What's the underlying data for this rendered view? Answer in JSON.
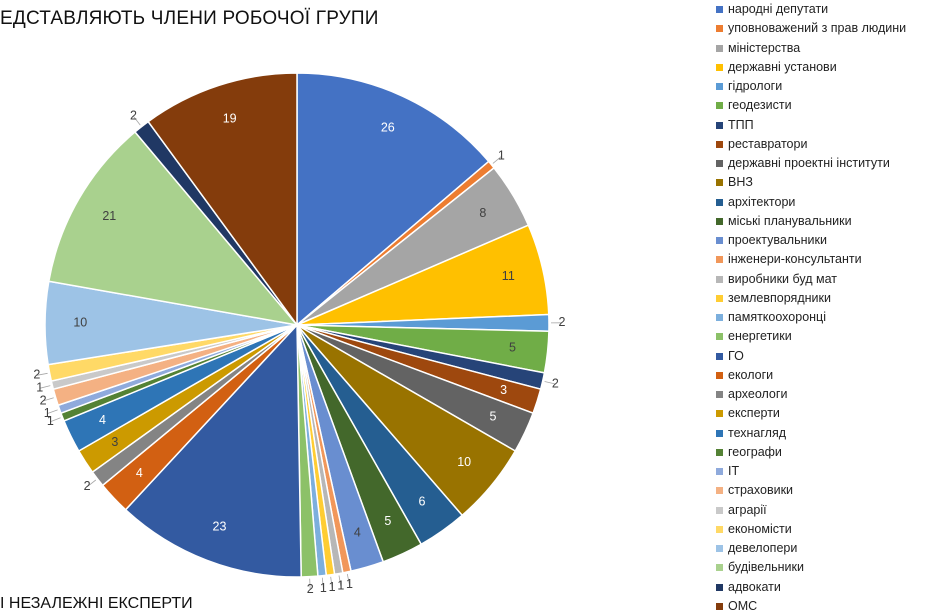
{
  "header": {
    "title": "ЕДСТАВЛЯЮТЬ ЧЛЕНИ РОБОЧОЇ ГРУПИ",
    "footer_text": "І НЕЗАЛЕЖНІ ЕКСПЕРТИ"
  },
  "chart_data": {
    "type": "pie",
    "title": "ЕДСТАВЛЯЮТЬ ЧЛЕНИ РОБОЧОЇ ГРУПИ",
    "legend_position": "right",
    "slices": [
      {
        "label": "народні депутати",
        "value": 26,
        "color": "#4472C4"
      },
      {
        "label": "уповноважений з прав людини",
        "value": 1,
        "color": "#ED7D31"
      },
      {
        "label": "міністерства",
        "value": 8,
        "color": "#A5A5A5"
      },
      {
        "label": "державні установи",
        "value": 11,
        "color": "#FFC000"
      },
      {
        "label": "гідрологи",
        "value": 2,
        "color": "#5B9BD5"
      },
      {
        "label": "геодезисти",
        "value": 5,
        "color": "#70AD47"
      },
      {
        "label": "ТПП",
        "value": 2,
        "color": "#264478"
      },
      {
        "label": "реставратори",
        "value": 3,
        "color": "#9E480E"
      },
      {
        "label": "державні проектні інститути",
        "value": 5,
        "color": "#636363"
      },
      {
        "label": "ВНЗ",
        "value": 10,
        "color": "#997300"
      },
      {
        "label": "архітектори",
        "value": 6,
        "color": "#255E91"
      },
      {
        "label": "міські планувальники",
        "value": 5,
        "color": "#43682B"
      },
      {
        "label": "проектувальники",
        "value": 4,
        "color": "#698ED0"
      },
      {
        "label": "інженери-консультанти",
        "value": 1,
        "color": "#F1975A"
      },
      {
        "label": "виробники буд мат",
        "value": 1,
        "color": "#B7B7B7"
      },
      {
        "label": "землевпорядники",
        "value": 1,
        "color": "#FFCD33"
      },
      {
        "label": "памяткоохоронці",
        "value": 1,
        "color": "#7CAFDD"
      },
      {
        "label": "енергетики",
        "value": 2,
        "color": "#8CC168"
      },
      {
        "label": "ГО",
        "value": 23,
        "color": "#335AA1"
      },
      {
        "label": "екологи",
        "value": 4,
        "color": "#D26012"
      },
      {
        "label": "археологи",
        "value": 2,
        "color": "#848484"
      },
      {
        "label": "експерти",
        "value": 3,
        "color": "#CC9A00"
      },
      {
        "label": "технагляд",
        "value": 4,
        "color": "#2E75B6"
      },
      {
        "label": "географи",
        "value": 1,
        "color": "#548235"
      },
      {
        "label": "IT",
        "value": 1,
        "color": "#8FAADC"
      },
      {
        "label": "страховики",
        "value": 2,
        "color": "#F4B183"
      },
      {
        "label": "аграрії",
        "value": 1,
        "color": "#C9C9C9"
      },
      {
        "label": "економісти",
        "value": 2,
        "color": "#FFD966"
      },
      {
        "label": "девелопери",
        "value": 10,
        "color": "#9DC3E6"
      },
      {
        "label": "будівельники",
        "value": 21,
        "color": "#A9D18E"
      },
      {
        "label": "адвокати",
        "value": 2,
        "color": "#203864"
      },
      {
        "label": "ОМС",
        "value": 19,
        "color": "#843C0C"
      }
    ]
  }
}
